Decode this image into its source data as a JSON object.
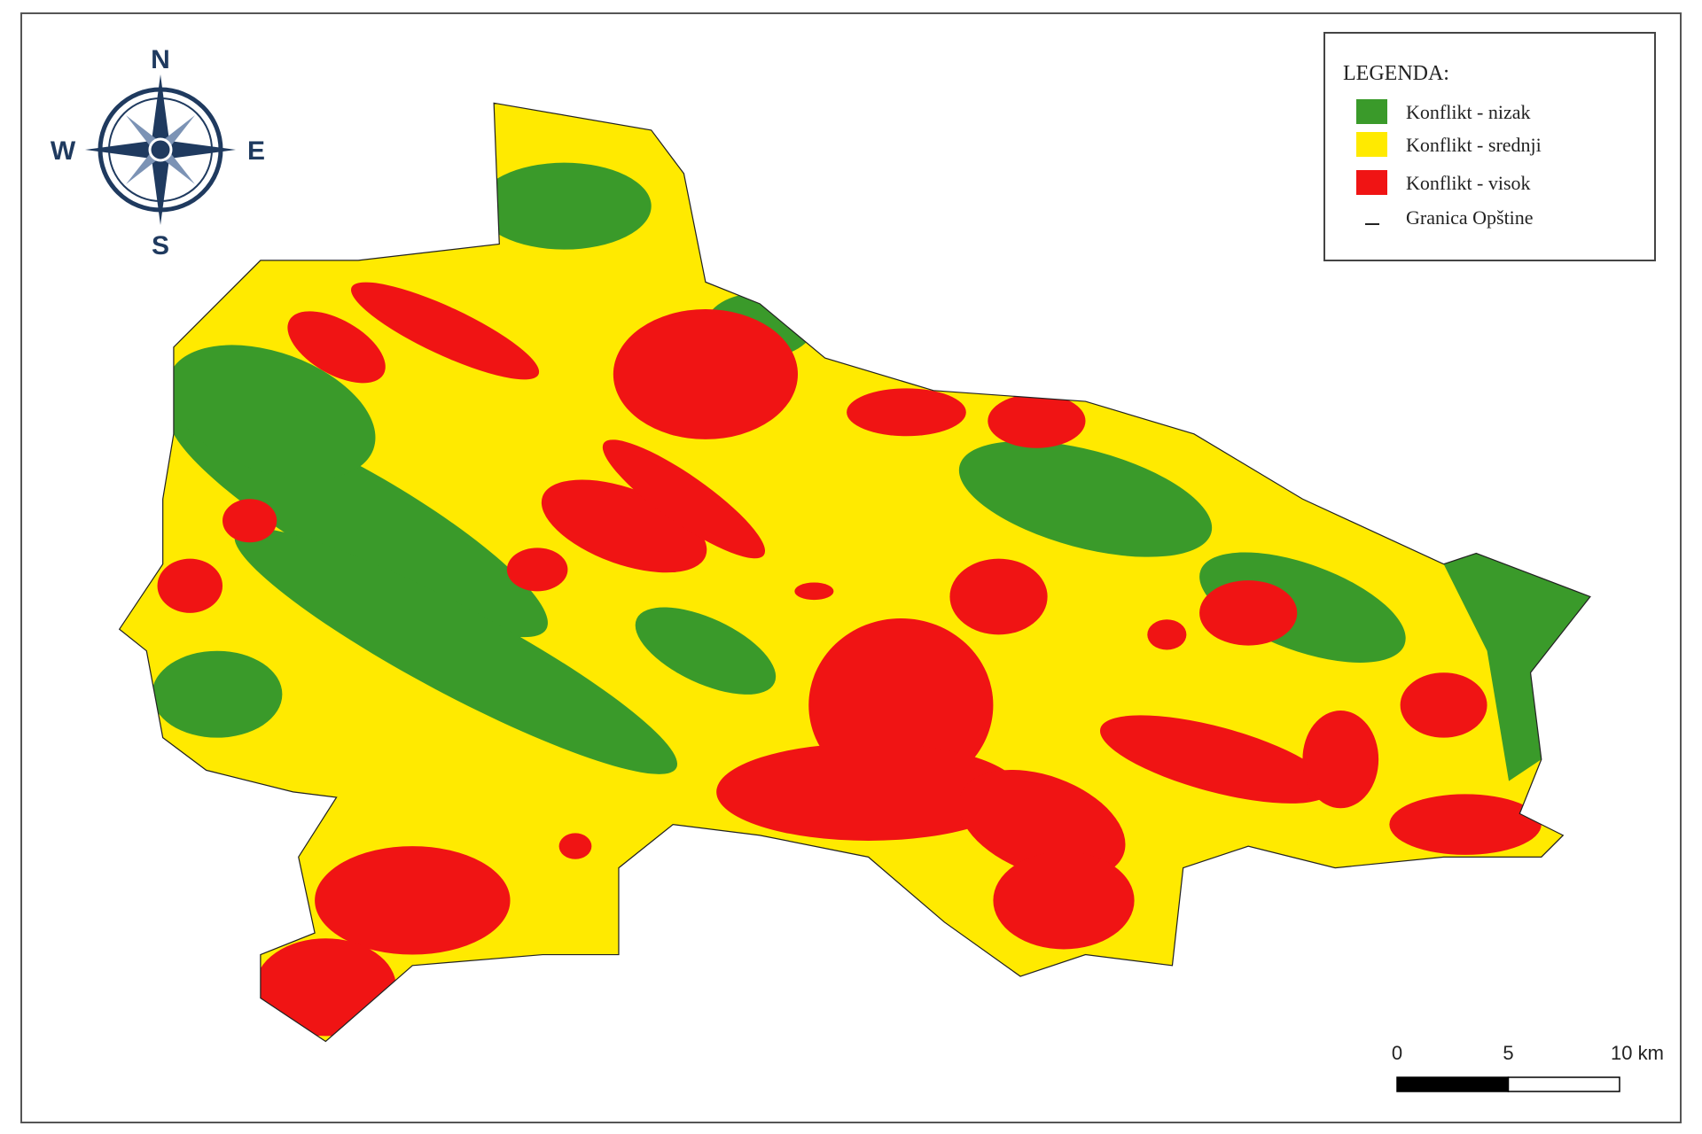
{
  "compass": {
    "north": "N",
    "east": "E",
    "south": "S",
    "west": "W"
  },
  "legend": {
    "title": "LEGENDA:",
    "items": [
      {
        "label": "Konflikt - nizak",
        "color": "#3a9a2a"
      },
      {
        "label": "Konflikt - srednji",
        "color": "#ffea00"
      },
      {
        "label": "Konflikt - visok",
        "color": "#f01414"
      },
      {
        "label": "Granica Opštine",
        "color": "#222222"
      }
    ]
  },
  "scale_bar": {
    "ticks": [
      0,
      5,
      {
        "value": 10,
        "label": "10 km"
      }
    ]
  }
}
